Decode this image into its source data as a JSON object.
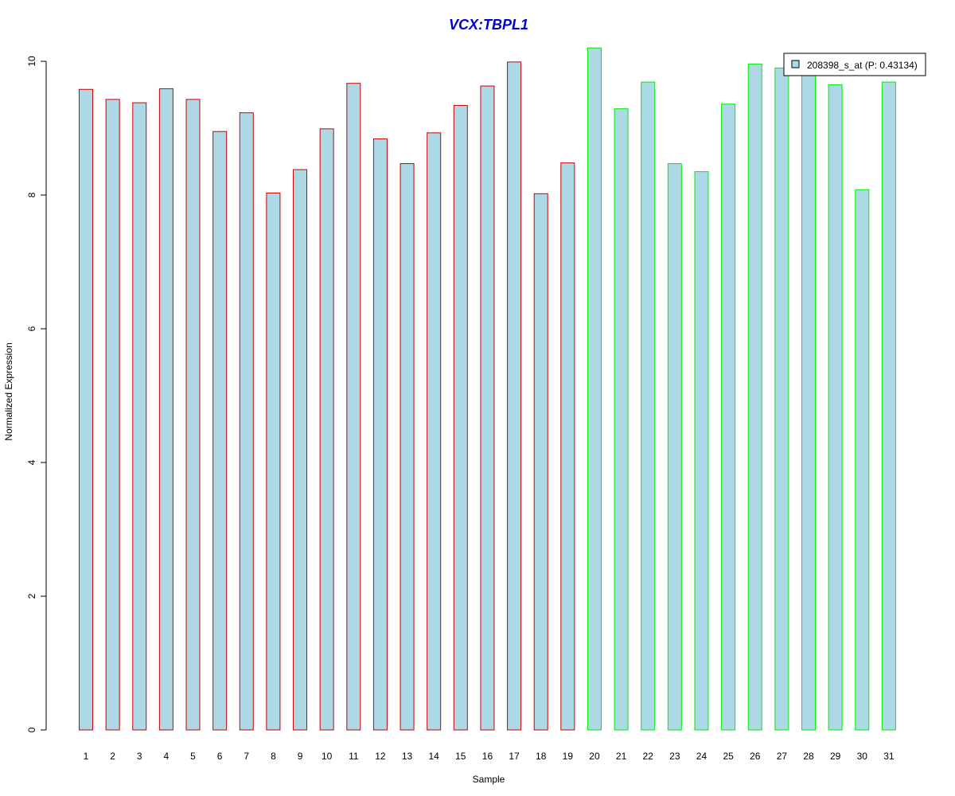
{
  "chart_data": {
    "type": "bar",
    "title": "VCX:TBPL1",
    "xlabel": "Sample",
    "ylabel": "Normalized Expression",
    "ylim": [
      0,
      10
    ],
    "yticks": [
      "0",
      "2",
      "4",
      "6",
      "8",
      "10"
    ],
    "categories": [
      "1",
      "2",
      "3",
      "4",
      "5",
      "6",
      "7",
      "8",
      "9",
      "10",
      "11",
      "12",
      "13",
      "14",
      "15",
      "16",
      "17",
      "18",
      "19",
      "20",
      "21",
      "22",
      "23",
      "24",
      "25",
      "26",
      "27",
      "28",
      "29",
      "30",
      "31"
    ],
    "series": [
      {
        "name": "208398_s_at (P: 0.43134)",
        "values": [
          9.58,
          9.43,
          9.38,
          9.59,
          9.43,
          8.95,
          9.23,
          8.03,
          8.38,
          8.99,
          9.67,
          8.84,
          8.47,
          8.93,
          9.34,
          9.63,
          9.99,
          8.02,
          8.48,
          10.2,
          9.29,
          9.69,
          8.47,
          8.35,
          9.36,
          9.96,
          9.9,
          9.8,
          9.65,
          8.08,
          9.69
        ],
        "fill": "#add8e6"
      }
    ],
    "group_colors": [
      "#cc0000",
      "#cc0000",
      "#cc0000",
      "#cc0000",
      "#cc0000",
      "#cc0000",
      "#cc0000",
      "#cc0000",
      "#cc0000",
      "#cc0000",
      "#cc0000",
      "#cc0000",
      "#cc0000",
      "#cc0000",
      "#cc0000",
      "#cc0000",
      "#cc0000",
      "#cc0000",
      "#cc0000",
      "#00ee00",
      "#00ee00",
      "#00ee00",
      "#00ee00",
      "#00ee00",
      "#00ee00",
      "#00ee00",
      "#00ee00",
      "#00ee00",
      "#00ee00",
      "#00ee00",
      "#00ee00"
    ],
    "title_color": "#0000cc",
    "legend": {
      "label": "208398_s_at (P: 0.43134)",
      "position": "top-right"
    },
    "grid": false
  }
}
